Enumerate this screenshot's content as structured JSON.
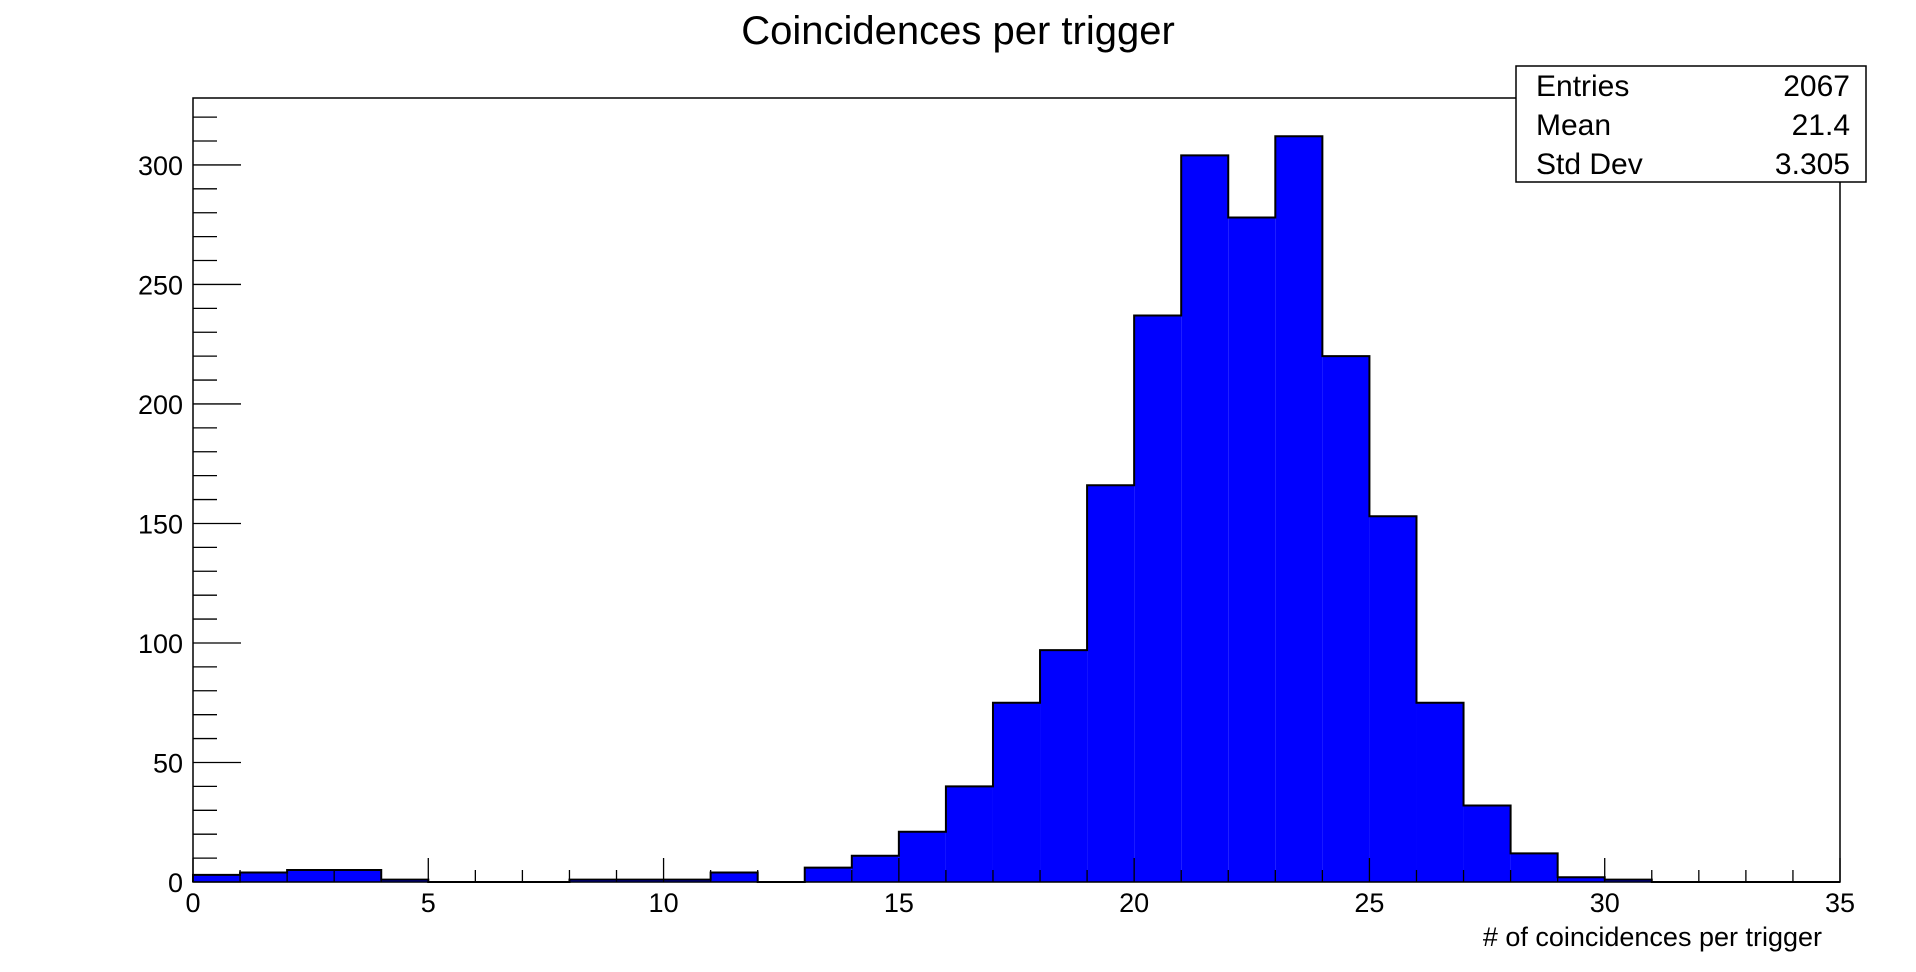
{
  "chart_data": {
    "type": "bar",
    "title": "Coincidences per trigger",
    "xlabel": "# of coincidences per trigger",
    "ylabel": "",
    "xlim": [
      0,
      35
    ],
    "ylim": [
      0,
      328
    ],
    "x_ticks": [
      "0",
      "5",
      "10",
      "15",
      "20",
      "25",
      "30",
      "35"
    ],
    "y_ticks": [
      "0",
      "50",
      "100",
      "150",
      "200",
      "250",
      "300"
    ],
    "bin_width": 1,
    "bin_edges_start": [
      0,
      1,
      2,
      3,
      4,
      5,
      6,
      7,
      8,
      9,
      10,
      11,
      12,
      13,
      14,
      15,
      16,
      17,
      18,
      19,
      20,
      21,
      22,
      23,
      24,
      25,
      26,
      27,
      28,
      29,
      30,
      31,
      32,
      33,
      34
    ],
    "values": [
      3,
      4,
      5,
      5,
      1,
      0,
      0,
      0,
      1,
      1,
      1,
      4,
      0,
      6,
      11,
      21,
      40,
      75,
      97,
      166,
      237,
      304,
      278,
      312,
      220,
      153,
      75,
      32,
      12,
      2,
      1,
      0,
      0,
      0,
      0
    ],
    "fill_color": "#0000ff",
    "grid": false,
    "legend": "none",
    "stats_box": {
      "position": "top-right",
      "rows": [
        {
          "label": "Entries",
          "value": "2067"
        },
        {
          "label": "Mean",
          "value": "21.4"
        },
        {
          "label": "Std Dev",
          "value": "3.305"
        }
      ]
    }
  }
}
